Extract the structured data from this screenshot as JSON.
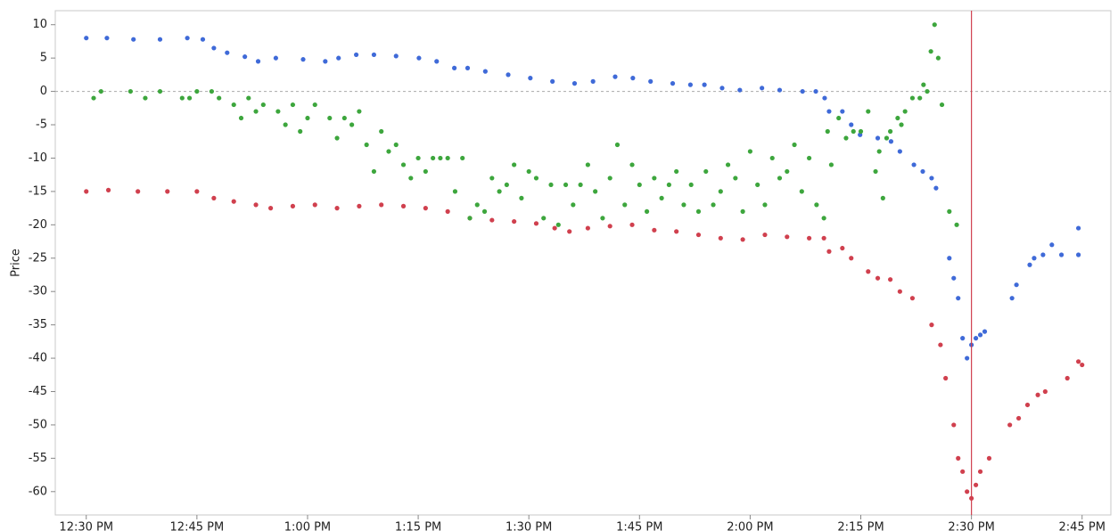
{
  "chart_data": {
    "type": "scatter",
    "ylabel": "Price",
    "xlim": [
      745.8,
      888.9
    ],
    "ylim": [
      -63.5,
      12.1
    ],
    "xticks": [
      {
        "value": 750,
        "label": "12:30 PM"
      },
      {
        "value": 765,
        "label": "12:45 PM"
      },
      {
        "value": 780,
        "label": "1:00 PM"
      },
      {
        "value": 795,
        "label": "1:15 PM"
      },
      {
        "value": 810,
        "label": "1:30 PM"
      },
      {
        "value": 825,
        "label": "1:45 PM"
      },
      {
        "value": 840,
        "label": "2:00 PM"
      },
      {
        "value": 855,
        "label": "2:15 PM"
      },
      {
        "value": 870,
        "label": "2:30 PM"
      },
      {
        "value": 885,
        "label": "2:45 PM"
      }
    ],
    "yticks": [
      10,
      5,
      0,
      -5,
      -10,
      -15,
      -20,
      -25,
      -30,
      -35,
      -40,
      -45,
      -50,
      -55,
      -60
    ],
    "y_ref": 0,
    "x_ref": 870,
    "series": [
      {
        "color": "#3f6ad8",
        "x": [
          750,
          752.8,
          756.4,
          760,
          763.7,
          765.8,
          767.3,
          769.1,
          771.5,
          773.3,
          775.7,
          779.4,
          782.4,
          784.2,
          786.6,
          789,
          792,
          795.1,
          797.5,
          799.9,
          801.7,
          804.1,
          807.2,
          810.2,
          813.2,
          816.2,
          818.7,
          821.7,
          824.1,
          826.5,
          829.5,
          831.9,
          833.8,
          836.2,
          838.6,
          841.6,
          844,
          847.1,
          848.9,
          850.1,
          850.7,
          852.5,
          853.7,
          854.9,
          857.3,
          859.1,
          860.3,
          862.2,
          863.4,
          864.6,
          865.2,
          867,
          867.6,
          868.2,
          868.8,
          869.4,
          870,
          870.6,
          871.2,
          871.8,
          875.5,
          876.1,
          877.9,
          878.5,
          879.7,
          880.9,
          882.2,
          884.5,
          884.5
        ],
        "values": [
          8,
          8,
          7.8,
          7.8,
          8,
          7.8,
          6.5,
          5.8,
          5.2,
          4.5,
          5,
          4.8,
          4.5,
          5,
          5.5,
          5.5,
          5.3,
          5,
          4.5,
          3.5,
          3.5,
          3,
          2.5,
          2,
          1.5,
          1.2,
          1.5,
          2.2,
          2,
          1.5,
          1.2,
          1,
          1,
          0.5,
          0.2,
          0.5,
          0.2,
          0,
          0,
          -1,
          -3,
          -3,
          -5,
          -6.5,
          -7,
          -7.5,
          -9,
          -11,
          -12,
          -13,
          -14.5,
          -25,
          -28,
          -31,
          -37,
          -40,
          -38,
          -37,
          -36.5,
          -36,
          -31,
          -29,
          -26,
          -25,
          -24.5,
          -23,
          -24.5,
          -20.5,
          -24.5
        ]
      },
      {
        "color": "#d0404e",
        "x": [
          750,
          753,
          757,
          761,
          765,
          767.3,
          770,
          773,
          775,
          778,
          781,
          784,
          787,
          790,
          793,
          796,
          799,
          802,
          805,
          808,
          811,
          813.5,
          815.5,
          818,
          821,
          824,
          827,
          830,
          833,
          836,
          839,
          842,
          845,
          848,
          850,
          850.7,
          852.5,
          853.7,
          856,
          857.3,
          859,
          860.3,
          862,
          864.6,
          865.8,
          866.5,
          867.6,
          868.2,
          868.8,
          869.4,
          870,
          870.6,
          871.2,
          872.4,
          875.2,
          876.4,
          877.6,
          879,
          880,
          883,
          884.5,
          885
        ],
        "values": [
          -15,
          -14.8,
          -15,
          -15,
          -15,
          -16,
          -16.5,
          -17,
          -17.5,
          -17.2,
          -17,
          -17.5,
          -17.2,
          -17,
          -17.2,
          -17.5,
          -18,
          -19,
          -19.3,
          -19.5,
          -19.8,
          -20.5,
          -21,
          -20.5,
          -20.2,
          -20,
          -20.8,
          -21,
          -21.5,
          -22,
          -22.2,
          -21.5,
          -21.8,
          -22,
          -22,
          -24,
          -23.5,
          -25,
          -27,
          -28,
          -28.2,
          -30,
          -31,
          -35,
          -38,
          -43,
          -50,
          -55,
          -57,
          -60,
          -61,
          -59,
          -57,
          -55,
          -50,
          -49,
          -47,
          -45.5,
          -45,
          -43,
          -40.5,
          -41
        ]
      },
      {
        "color": "#3da63d",
        "x": [
          751,
          752,
          756,
          758,
          760,
          763,
          764,
          765,
          767,
          768,
          770,
          771,
          772,
          773,
          774,
          776,
          777,
          778,
          779,
          780,
          781,
          783,
          784,
          785,
          786,
          787,
          788,
          789,
          790,
          791,
          792,
          793,
          794,
          795,
          796,
          797,
          798,
          799,
          800,
          801,
          802,
          803,
          804,
          805,
          806,
          807,
          808,
          809,
          810,
          811,
          812,
          813,
          814,
          815,
          816,
          817,
          818,
          819,
          820,
          821,
          822,
          823,
          824,
          825,
          826,
          827,
          828,
          829,
          830,
          831,
          832,
          833,
          834,
          835,
          836,
          837,
          838,
          839,
          840,
          841,
          842,
          843,
          844,
          845,
          846,
          847,
          848,
          849,
          850,
          850.5,
          851,
          852,
          853,
          854,
          855,
          856,
          857,
          857.5,
          858,
          858.5,
          859,
          860,
          860.5,
          861,
          862,
          863,
          863.5,
          864,
          864.5,
          865,
          865.5,
          866,
          867,
          868
        ],
        "values": [
          -1,
          0,
          0,
          -1,
          0,
          -1,
          -1,
          0,
          0,
          -1,
          -2,
          -4,
          -1,
          -3,
          -2,
          -3,
          -5,
          -2,
          -6,
          -4,
          -2,
          -4,
          -7,
          -4,
          -5,
          -3,
          -8,
          -12,
          -6,
          -9,
          -8,
          -11,
          -13,
          -10,
          -12,
          -10,
          -10,
          -10,
          -15,
          -10,
          -19,
          -17,
          -18,
          -13,
          -15,
          -14,
          -11,
          -16,
          -12,
          -13,
          -19,
          -14,
          -20,
          -14,
          -17,
          -14,
          -11,
          -15,
          -19,
          -13,
          -8,
          -17,
          -11,
          -14,
          -18,
          -13,
          -16,
          -14,
          -12,
          -17,
          -14,
          -18,
          -12,
          -17,
          -15,
          -11,
          -13,
          -18,
          -9,
          -14,
          -17,
          -10,
          -13,
          -12,
          -8,
          -15,
          -10,
          -17,
          -19,
          -6,
          -11,
          -4,
          -7,
          -6,
          -6,
          -3,
          -12,
          -9,
          -16,
          -7,
          -6,
          -4,
          -5,
          -3,
          -1,
          -1,
          1,
          0,
          6,
          10,
          5,
          -2,
          -18,
          -20
        ]
      }
    ]
  }
}
